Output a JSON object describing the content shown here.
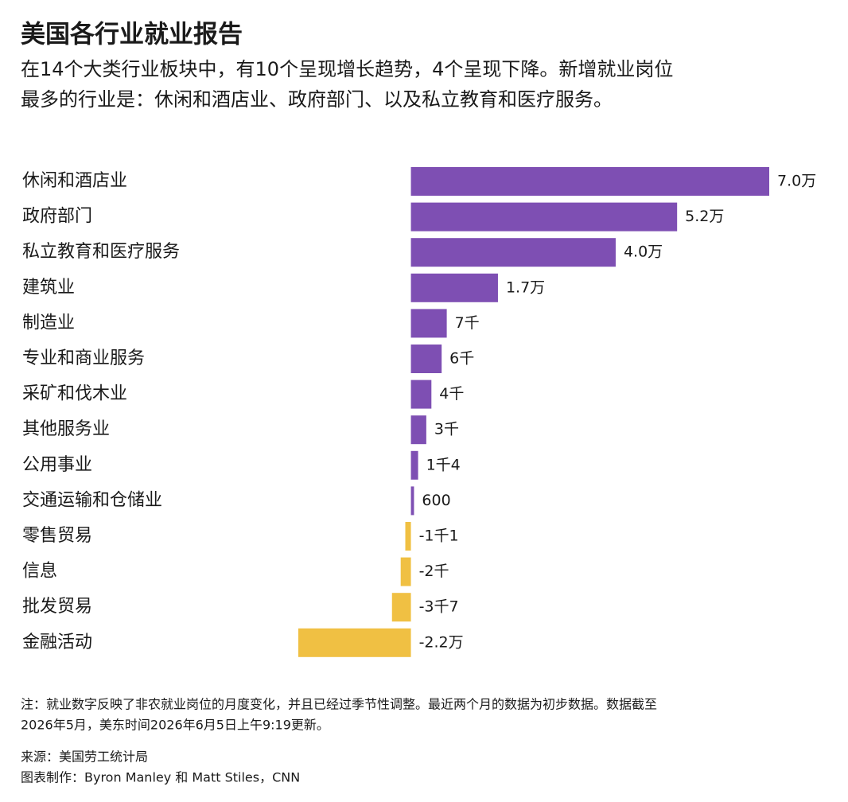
{
  "chart_data": {
    "type": "bar",
    "orientation": "horizontal",
    "title": "美国各行业就业报告",
    "subtitle": [
      "在14个大类行业板块中，有10个呈现增长趋势，4个呈现下降。新增就业岗位",
      "最多的行业是：休闲和酒店业、政府部门、以及私立教育和医疗服务。"
    ],
    "categories": [
      "休闲和酒店业",
      "政府部门",
      "私立教育和医疗服务",
      "建筑业",
      "制造业",
      "专业和商业服务",
      "采矿和伐木业",
      "其他服务业",
      "公用事业",
      "交通运输和仓储业",
      "零售贸易",
      "信息",
      "批发贸易",
      "金融活动"
    ],
    "values": [
      70000,
      52000,
      40000,
      17000,
      7000,
      6000,
      4000,
      3000,
      1400,
      600,
      -1100,
      -2000,
      -3700,
      -22000
    ],
    "value_labels": [
      "7.0万",
      "5.2万",
      "4.0万",
      "1.7万",
      "7千",
      "6千",
      "4千",
      "3千",
      "1千4",
      "600",
      "-1千1",
      "-2千",
      "-3千7",
      "-2.2万"
    ],
    "positive_color": "#7e4fb3",
    "negative_color": "#f0c043",
    "note": [
      "注：就业数字反映了非农就业岗位的月度变化，并且已经过季节性调整。最近两个月的数据为初步数据。数据截至",
      "2026年5月，美东时间2026年6月5日上午9:19更新。"
    ],
    "source": "来源：美国劳工统计局",
    "credit": "图表制作：Byron Manley 和 Matt Stiles，CNN"
  }
}
